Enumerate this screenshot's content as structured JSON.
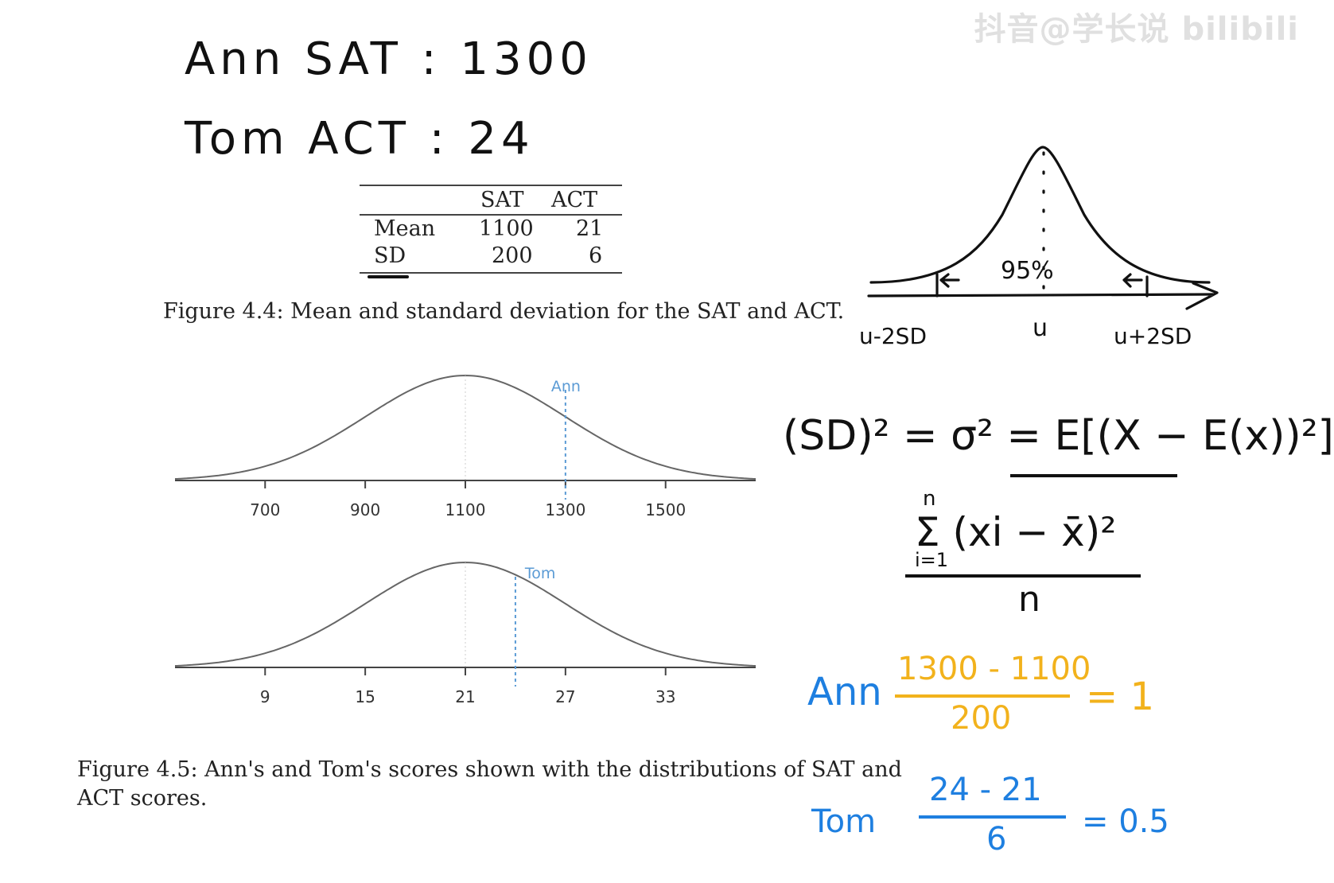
{
  "watermark": "抖音@学长说 bilibili",
  "notes": {
    "ann_line": "Ann SAT : 1300",
    "tom_line": "Tom ACT : 24"
  },
  "table": {
    "columns": [
      "",
      "SAT",
      "ACT"
    ],
    "rows": [
      {
        "label": "Mean",
        "sat": "1100",
        "act": "21"
      },
      {
        "label": "SD",
        "sat": "200",
        "act": "6"
      }
    ]
  },
  "figure44_caption": "Figure 4.4: Mean and standard deviation for the SAT and ACT.",
  "bell_sketch": {
    "percent": "95%",
    "labels": [
      "u-2SD",
      "u",
      "u+2SD"
    ]
  },
  "variance_formula": {
    "lhs": "(SD)² = σ² = E[(X − E(x))²]",
    "sum_numerator": "Σ (xi − x̄)²",
    "sum_upper": "n",
    "sum_lower": "i=1",
    "denominator": "n"
  },
  "chart_data": [
    {
      "type": "line",
      "series": [
        {
          "name": "SAT distribution",
          "mean": 1100,
          "sd": 200
        }
      ],
      "x_ticks": [
        "700",
        "900",
        "1100",
        "1300",
        "1500"
      ],
      "xlim": [
        520,
        1680
      ],
      "marker": {
        "name": "Ann",
        "x": 1300
      },
      "grid": false
    },
    {
      "type": "line",
      "series": [
        {
          "name": "ACT distribution",
          "mean": 21,
          "sd": 6
        }
      ],
      "x_ticks": [
        "9",
        "15",
        "21",
        "27",
        "33"
      ],
      "xlim": [
        3.6,
        38.4
      ],
      "marker": {
        "name": "Tom",
        "x": 24
      },
      "grid": false
    }
  ],
  "figure45_caption": "Figure 4.5: Ann's and Tom's scores shown with the distributions of SAT and ACT scores.",
  "zscores": {
    "ann": {
      "name": "Ann",
      "numerator": "1300 - 1100",
      "denominator": "200",
      "result": "= 1"
    },
    "tom": {
      "name": "Tom",
      "numerator": "24 - 21",
      "denominator": "6",
      "result": "= 0.5"
    }
  },
  "colors": {
    "handwriting": "#111111",
    "yellow": "#f2b21c",
    "blue": "#1e7fe0",
    "marker": "#5b9bd5",
    "curve": "#666666"
  }
}
